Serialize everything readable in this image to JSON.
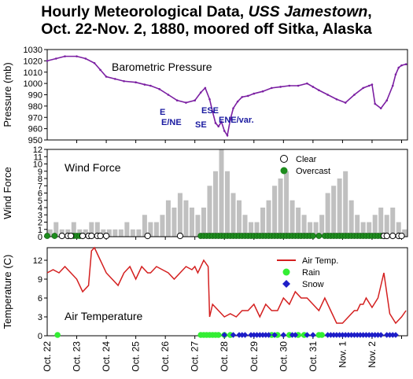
{
  "title": {
    "line1_a": "Hourly Meteorological Data, ",
    "line1_b": "USS Jamestown",
    "line1_c": ",",
    "line2": "Oct. 22-Nov. 2, 1880, moored off Sitka, Alaska"
  },
  "x_ticks": [
    "Oct. 22",
    "Oct. 23",
    "Oct. 24",
    "Oct. 25",
    "Oct. 26",
    "Oct. 27",
    "Oct. 28",
    "Oct. 29",
    "Oct. 30",
    "Oct. 31",
    "Nov. 1",
    "Nov. 2"
  ],
  "colors": {
    "pressure": "#7b1fa2",
    "wind_bar": "#c0c0c0",
    "overcast": "#1e8c1e",
    "air_temp": "#d42020",
    "rain": "#33ee33",
    "snow": "#1e1ec8",
    "annotation": "#1a1aa0"
  },
  "chart_data": [
    {
      "type": "line",
      "label": "Barometric Pressure",
      "ylabel": "Pressure (mb)",
      "ylim": [
        950,
        1030
      ],
      "yticks": [
        950,
        960,
        970,
        980,
        990,
        1000,
        1010,
        1020,
        1030
      ],
      "x_unit": "days since Oct. 22 00:00",
      "x": [
        0,
        0.3,
        0.6,
        1.0,
        1.3,
        1.6,
        1.8,
        2.0,
        2.3,
        2.6,
        3.0,
        3.3,
        3.5,
        3.8,
        4.1,
        4.4,
        4.7,
        5.0,
        5.2,
        5.35,
        5.5,
        5.6,
        5.7,
        5.8,
        5.9,
        6.0,
        6.1,
        6.2,
        6.3,
        6.45,
        6.6,
        6.8,
        7.0,
        7.3,
        7.6,
        7.9,
        8.2,
        8.5,
        8.8,
        9.0,
        9.2,
        9.5,
        9.8,
        10.1,
        10.4,
        10.7,
        10.9,
        11.0,
        11.1,
        11.3,
        11.5,
        11.7,
        11.8,
        11.9,
        12.0,
        12.15
      ],
      "values": [
        1020,
        1022,
        1024,
        1024,
        1022,
        1018,
        1012,
        1006,
        1004,
        1002,
        1001,
        999,
        998,
        995,
        990,
        985,
        983,
        985,
        992,
        996,
        986,
        975,
        965,
        962,
        966,
        958,
        954,
        968,
        978,
        984,
        988,
        989,
        991,
        993,
        996,
        997,
        998,
        998,
        1000,
        997,
        994,
        990,
        986,
        983,
        990,
        996,
        998,
        999,
        982,
        978,
        985,
        998,
        1008,
        1014,
        1016,
        1017
      ],
      "annotations": [
        "E",
        "E/NE",
        "SE",
        "ESE",
        "ENE/var."
      ]
    },
    {
      "type": "bar",
      "label": "Wind Force",
      "ylabel": "Wind Force",
      "ylim": [
        0,
        12
      ],
      "yticks": [
        0,
        1,
        2,
        3,
        4,
        5,
        6,
        7,
        8,
        9,
        10,
        11,
        12
      ],
      "series": [
        {
          "name": "Wind Force",
          "x": [
            0.1,
            0.3,
            0.5,
            0.7,
            0.9,
            1.1,
            1.3,
            1.5,
            1.7,
            1.9,
            2.1,
            2.3,
            2.5,
            2.7,
            2.9,
            3.1,
            3.3,
            3.5,
            3.7,
            3.9,
            4.1,
            4.3,
            4.5,
            4.7,
            4.9,
            5.1,
            5.3,
            5.5,
            5.7,
            5.9,
            6.1,
            6.3,
            6.5,
            6.7,
            6.9,
            7.1,
            7.3,
            7.5,
            7.7,
            7.9,
            8.1,
            8.3,
            8.5,
            8.7,
            8.9,
            9.1,
            9.3,
            9.5,
            9.7,
            9.9,
            10.1,
            10.3,
            10.5,
            10.7,
            10.9,
            11.1,
            11.3,
            11.5,
            11.7,
            11.9,
            12.1
          ],
          "values": [
            1,
            2,
            1,
            1,
            2,
            1,
            1,
            2,
            2,
            1,
            1,
            1,
            1,
            2,
            1,
            1,
            3,
            2,
            2,
            3,
            5,
            4,
            6,
            5,
            4,
            3,
            4,
            7,
            9,
            12,
            9,
            6,
            5,
            3,
            2,
            2,
            4,
            5,
            7,
            8,
            9,
            5,
            4,
            3,
            2,
            2,
            3,
            6,
            7,
            8,
            9,
            5,
            3,
            2,
            2,
            3,
            4,
            3,
            4,
            2,
            1
          ]
        }
      ],
      "legend": [
        "Clear",
        "Overcast"
      ],
      "clear_x": [
        0.5,
        0.7,
        0.8,
        1.2,
        1.4,
        1.5,
        1.7,
        1.8,
        2.0,
        3.4,
        4.5,
        11.4,
        11.5,
        11.7,
        11.9,
        12.0
      ],
      "overcast_x": [
        0.0,
        0.25,
        0.9,
        1.0,
        1.1,
        5.2,
        5.3,
        5.4,
        5.5,
        5.6,
        5.7,
        5.8,
        5.9,
        6.0,
        6.1,
        6.2,
        6.3,
        6.4,
        6.5,
        6.6,
        6.7,
        6.8,
        6.9,
        7.0,
        7.1,
        7.2,
        7.3,
        7.4,
        7.5,
        7.6,
        7.7,
        7.8,
        7.9,
        8.0,
        8.1,
        8.2,
        8.3,
        8.4,
        8.5,
        8.6,
        8.7,
        8.8,
        8.9,
        9.0,
        9.2,
        9.4,
        9.5,
        9.6,
        9.7,
        9.8,
        9.9,
        10.0,
        10.1,
        10.2,
        10.3,
        10.4,
        10.5,
        10.6,
        10.7,
        10.8,
        10.9,
        11.0,
        11.1,
        11.2,
        11.3
      ]
    },
    {
      "type": "line",
      "label": "Air Temperature",
      "ylabel": "Temperature (C)",
      "ylim": [
        0,
        14
      ],
      "yticks": [
        0,
        3,
        6,
        9,
        12
      ],
      "series": [
        {
          "name": "Air Temp.",
          "x": [
            0,
            0.2,
            0.4,
            0.6,
            0.8,
            1.0,
            1.2,
            1.4,
            1.5,
            1.6,
            1.8,
            2.0,
            2.2,
            2.4,
            2.6,
            2.8,
            3.0,
            3.2,
            3.4,
            3.5,
            3.7,
            3.9,
            4.1,
            4.3,
            4.5,
            4.7,
            4.9,
            5.0,
            5.1,
            5.3,
            5.45,
            5.5,
            5.6,
            5.8,
            6.0,
            6.2,
            6.4,
            6.6,
            6.8,
            7.0,
            7.2,
            7.4,
            7.6,
            7.8,
            8.0,
            8.2,
            8.4,
            8.6,
            8.8,
            9.0,
            9.2,
            9.4,
            9.6,
            9.8,
            10.0,
            10.2,
            10.4,
            10.5,
            10.6,
            10.7,
            10.8,
            11.0,
            11.2,
            11.4,
            11.6,
            11.8,
            12.0,
            12.15
          ],
          "values": [
            10,
            10.5,
            10,
            11,
            10,
            9,
            7,
            8,
            13.5,
            14,
            12,
            10,
            9,
            8,
            10,
            11,
            9,
            11,
            10,
            10,
            11,
            10.5,
            10,
            9,
            10,
            11,
            10.5,
            11,
            10,
            12,
            11,
            3,
            5,
            4,
            3,
            3.5,
            3,
            4,
            4,
            5,
            3,
            5,
            4,
            4,
            6,
            5,
            7,
            6,
            6,
            5,
            4,
            6,
            4,
            2,
            2,
            3,
            4,
            4,
            5,
            5,
            6,
            4.5,
            6,
            10,
            3.5,
            2,
            3,
            4
          ]
        },
        {
          "name": "Rain",
          "x": [
            0.35,
            5.2,
            5.3,
            5.4,
            5.5,
            5.6,
            5.7,
            5.8,
            6.0,
            6.2,
            7.6,
            7.8,
            8.2,
            8.5,
            8.7,
            9.2,
            9.3
          ]
        },
        {
          "name": "Snow",
          "x": [
            6.0,
            6.3,
            6.5,
            6.6,
            6.7,
            6.9,
            7.0,
            7.1,
            7.2,
            7.3,
            7.4,
            7.5,
            7.7,
            8.0,
            8.3,
            8.4,
            8.8,
            9.0,
            9.5,
            9.6,
            9.7,
            9.8,
            9.9,
            10.0,
            10.1,
            10.2,
            10.3,
            10.4,
            10.5,
            10.6,
            10.7,
            10.8,
            10.9,
            11.0,
            11.1,
            11.2,
            11.3,
            11.5,
            11.6,
            11.7,
            11.8
          ]
        }
      ],
      "legend": [
        "Air Temp.",
        "Rain",
        "Snow"
      ]
    }
  ]
}
